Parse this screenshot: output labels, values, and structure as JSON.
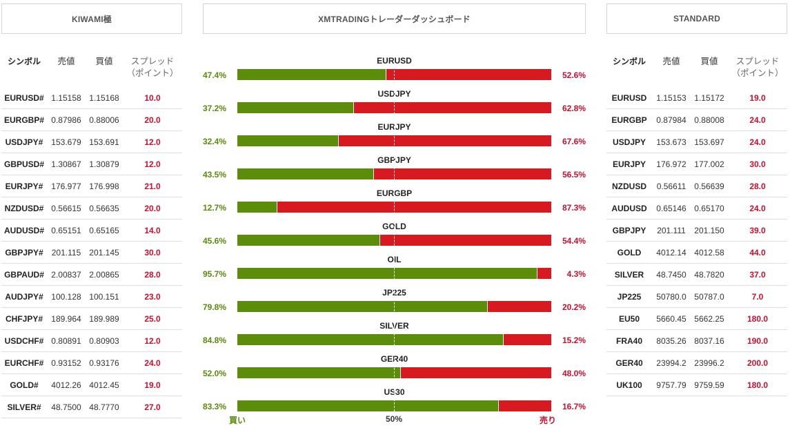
{
  "left_panel": {
    "title": "KIWAMI極",
    "headers": {
      "symbol": "シンボル",
      "bid": "売値",
      "ask": "買値",
      "spread": "スプレッド（ポイント）"
    },
    "rows": [
      {
        "symbol": "EURUSD#",
        "bid": "1.15158",
        "ask": "1.15168",
        "spread": "10.0"
      },
      {
        "symbol": "EURGBP#",
        "bid": "0.87986",
        "ask": "0.88006",
        "spread": "20.0"
      },
      {
        "symbol": "USDJPY#",
        "bid": "153.679",
        "ask": "153.691",
        "spread": "12.0"
      },
      {
        "symbol": "GBPUSD#",
        "bid": "1.30867",
        "ask": "1.30879",
        "spread": "12.0"
      },
      {
        "symbol": "EURJPY#",
        "bid": "176.977",
        "ask": "176.998",
        "spread": "21.0"
      },
      {
        "symbol": "NZDUSD#",
        "bid": "0.56615",
        "ask": "0.56635",
        "spread": "20.0"
      },
      {
        "symbol": "AUDUSD#",
        "bid": "0.65151",
        "ask": "0.65165",
        "spread": "14.0"
      },
      {
        "symbol": "GBPJPY#",
        "bid": "201.115",
        "ask": "201.145",
        "spread": "30.0"
      },
      {
        "symbol": "GBPAUD#",
        "bid": "2.00837",
        "ask": "2.00865",
        "spread": "28.0"
      },
      {
        "symbol": "AUDJPY#",
        "bid": "100.128",
        "ask": "100.151",
        "spread": "23.0"
      },
      {
        "symbol": "CHFJPY#",
        "bid": "189.964",
        "ask": "189.989",
        "spread": "25.0"
      },
      {
        "symbol": "USDCHF#",
        "bid": "0.80891",
        "ask": "0.80903",
        "spread": "12.0"
      },
      {
        "symbol": "EURCHF#",
        "bid": "0.93152",
        "ask": "0.93176",
        "spread": "24.0"
      },
      {
        "symbol": "GOLD#",
        "bid": "4012.26",
        "ask": "4012.45",
        "spread": "19.0"
      },
      {
        "symbol": "SILVER#",
        "bid": "48.7500",
        "ask": "48.7770",
        "spread": "27.0"
      }
    ]
  },
  "center_panel": {
    "title": "XMTRADINGトレーダーダッシュボード",
    "legend": {
      "buy": "買い",
      "mid": "50%",
      "sell": "売り"
    },
    "colors": {
      "buy": "#5b8c0a",
      "sell": "#d71920"
    },
    "rows": [
      {
        "pair": "EURUSD",
        "buy": 47.4,
        "buy_label": "47.4%",
        "sell_label": "52.6%"
      },
      {
        "pair": "USDJPY",
        "buy": 37.2,
        "buy_label": "37.2%",
        "sell_label": "62.8%"
      },
      {
        "pair": "EURJPY",
        "buy": 32.4,
        "buy_label": "32.4%",
        "sell_label": "67.6%"
      },
      {
        "pair": "GBPJPY",
        "buy": 43.5,
        "buy_label": "43.5%",
        "sell_label": "56.5%"
      },
      {
        "pair": "EURGBP",
        "buy": 12.7,
        "buy_label": "12.7%",
        "sell_label": "87.3%"
      },
      {
        "pair": "GOLD",
        "buy": 45.6,
        "buy_label": "45.6%",
        "sell_label": "54.4%"
      },
      {
        "pair": "OIL",
        "buy": 95.7,
        "buy_label": "95.7%",
        "sell_label": "4.3%"
      },
      {
        "pair": "JP225",
        "buy": 79.8,
        "buy_label": "79.8%",
        "sell_label": "20.2%"
      },
      {
        "pair": "SILVER",
        "buy": 84.8,
        "buy_label": "84.8%",
        "sell_label": "15.2%"
      },
      {
        "pair": "GER40",
        "buy": 52.0,
        "buy_label": "52.0%",
        "sell_label": "48.0%"
      },
      {
        "pair": "US30",
        "buy": 83.3,
        "buy_label": "83.3%",
        "sell_label": "16.7%"
      }
    ]
  },
  "right_panel": {
    "title": "STANDARD",
    "headers": {
      "symbol": "シンボル",
      "bid": "売値",
      "ask": "買値",
      "spread": "スプレッド（ポイント）"
    },
    "rows": [
      {
        "symbol": "EURUSD",
        "bid": "1.15153",
        "ask": "1.15172",
        "spread": "19.0"
      },
      {
        "symbol": "EURGBP",
        "bid": "0.87984",
        "ask": "0.88008",
        "spread": "24.0"
      },
      {
        "symbol": "USDJPY",
        "bid": "153.673",
        "ask": "153.697",
        "spread": "24.0"
      },
      {
        "symbol": "EURJPY",
        "bid": "176.972",
        "ask": "177.002",
        "spread": "30.0"
      },
      {
        "symbol": "NZDUSD",
        "bid": "0.56611",
        "ask": "0.56639",
        "spread": "28.0"
      },
      {
        "symbol": "AUDUSD",
        "bid": "0.65146",
        "ask": "0.65170",
        "spread": "24.0"
      },
      {
        "symbol": "GBPJPY",
        "bid": "201.111",
        "ask": "201.150",
        "spread": "39.0"
      },
      {
        "symbol": "GOLD",
        "bid": "4012.14",
        "ask": "4012.58",
        "spread": "44.0"
      },
      {
        "symbol": "SILVER",
        "bid": "48.7450",
        "ask": "48.7820",
        "spread": "37.0"
      },
      {
        "symbol": "JP225",
        "bid": "50780.0",
        "ask": "50787.0",
        "spread": "7.0"
      },
      {
        "symbol": "EU50",
        "bid": "5660.45",
        "ask": "5662.25",
        "spread": "180.0"
      },
      {
        "symbol": "FRA40",
        "bid": "8035.26",
        "ask": "8037.16",
        "spread": "190.0"
      },
      {
        "symbol": "GER40",
        "bid": "23994.2",
        "ask": "23996.2",
        "spread": "200.0"
      },
      {
        "symbol": "UK100",
        "bid": "9757.79",
        "ask": "9759.59",
        "spread": "180.0"
      }
    ]
  }
}
